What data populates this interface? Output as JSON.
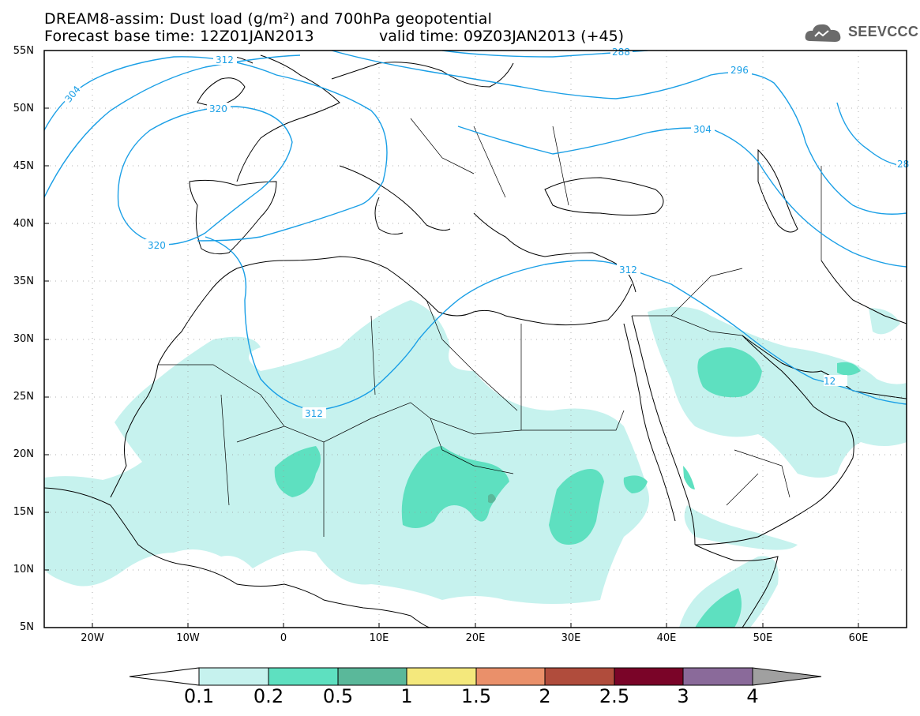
{
  "title": {
    "line1": "DREAM8-assim: Dust load (g/m²) and 700hPa geopotential",
    "line2": "Forecast base time: 12Z01JAN2013",
    "valid": "valid time: 09Z03JAN2013 (+45)"
  },
  "logo": {
    "text": "SEEVCCC",
    "icon": "cloud-icon"
  },
  "map": {
    "lon_range": [
      -25,
      65
    ],
    "lat_range": [
      5,
      55
    ],
    "lat_labels": [
      "55N",
      "50N",
      "45N",
      "40N",
      "35N",
      "30N",
      "25N",
      "20N",
      "15N",
      "10N",
      "5N"
    ],
    "lon_labels": [
      "20W",
      "10W",
      "0",
      "10E",
      "20E",
      "30E",
      "40E",
      "50E",
      "60E"
    ],
    "contour_color": "#1a9fe6",
    "contour_labels": [
      "304",
      "312",
      "320",
      "320",
      "296",
      "304",
      "312",
      "312",
      "288",
      "28"
    ]
  },
  "colorbar": {
    "labels": [
      "0.1",
      "0.2",
      "0.5",
      "1",
      "1.5",
      "2",
      "2.5",
      "3",
      "4"
    ],
    "colors": [
      "#ffffff",
      "#c6f2ee",
      "#5ee0c0",
      "#5ab89a",
      "#f4e87c",
      "#ea906a",
      "#b04c3c",
      "#7a0428",
      "#8a6a9a",
      "#a0a0a0"
    ]
  }
}
